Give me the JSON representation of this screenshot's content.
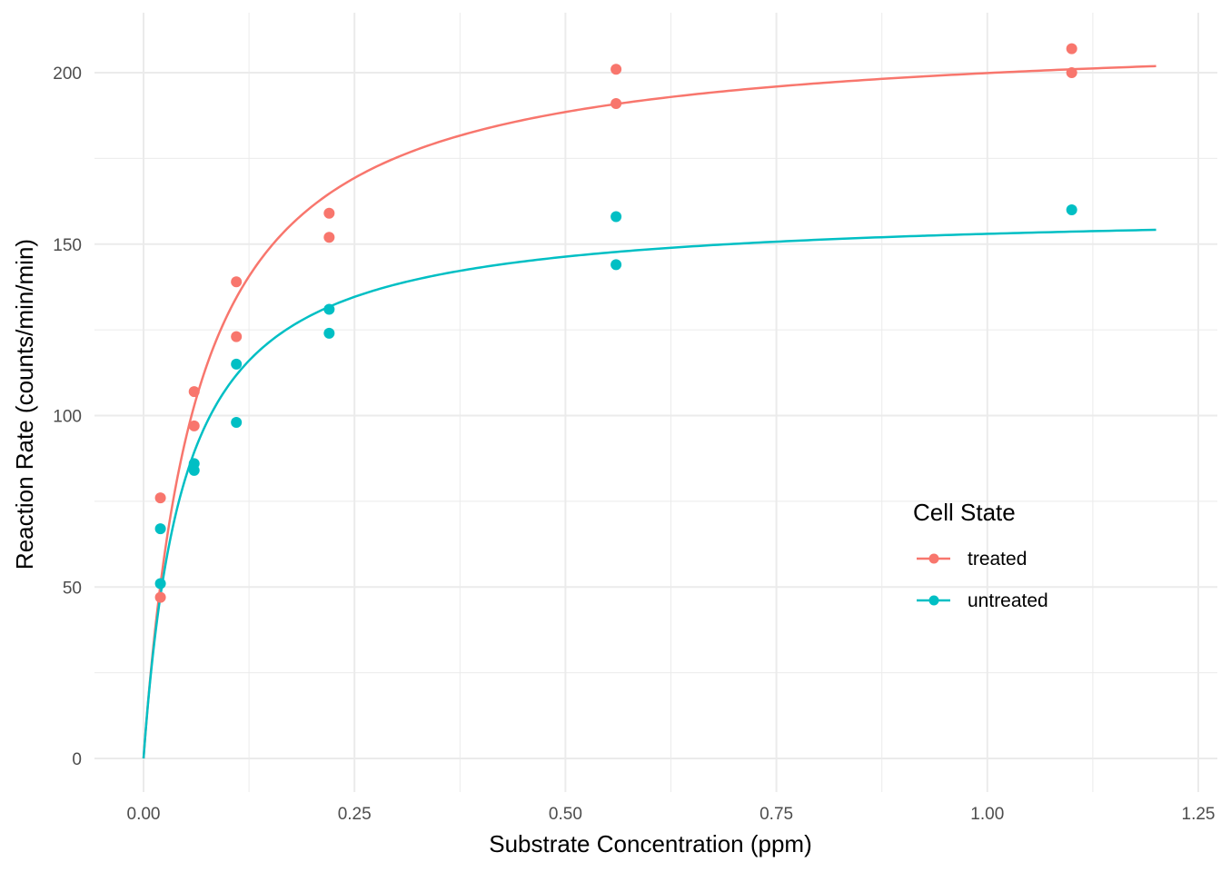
{
  "chart_data": {
    "type": "scatter",
    "title": "",
    "xlabel": "Substrate Concentration (ppm)",
    "ylabel": "Reaction Rate (counts/min/min)",
    "xlim": [
      -0.05,
      1.26
    ],
    "ylim": [
      -10,
      218
    ],
    "x_ticks": [
      0,
      0.25,
      0.5,
      0.75,
      1.0,
      1.25
    ],
    "x_tick_labels": [
      "0.00",
      "0.25",
      "0.50",
      "0.75",
      "1.00",
      "1.25"
    ],
    "y_ticks": [
      0,
      50,
      100,
      150,
      200
    ],
    "y_tick_labels": [
      "0",
      "50",
      "100",
      "150",
      "200"
    ],
    "grid": true,
    "legend": {
      "title": "Cell State",
      "placement": "right-inside",
      "entries": [
        "treated",
        "untreated"
      ]
    },
    "series": [
      {
        "name": "treated",
        "color": "#F8766D",
        "points": [
          {
            "x": 0.02,
            "y": 76
          },
          {
            "x": 0.02,
            "y": 47
          },
          {
            "x": 0.06,
            "y": 97
          },
          {
            "x": 0.06,
            "y": 107
          },
          {
            "x": 0.11,
            "y": 123
          },
          {
            "x": 0.11,
            "y": 139
          },
          {
            "x": 0.22,
            "y": 159
          },
          {
            "x": 0.22,
            "y": 152
          },
          {
            "x": 0.56,
            "y": 191
          },
          {
            "x": 0.56,
            "y": 201
          },
          {
            "x": 1.1,
            "y": 207
          },
          {
            "x": 1.1,
            "y": 200
          }
        ],
        "fit": {
          "model": "michaelis-menten",
          "Vm": 212.7,
          "K": 0.0641,
          "x_range": [
            0,
            1.2
          ]
        }
      },
      {
        "name": "untreated",
        "color": "#00BFC4",
        "points": [
          {
            "x": 0.02,
            "y": 67
          },
          {
            "x": 0.02,
            "y": 51
          },
          {
            "x": 0.06,
            "y": 84
          },
          {
            "x": 0.06,
            "y": 86
          },
          {
            "x": 0.11,
            "y": 98
          },
          {
            "x": 0.11,
            "y": 115
          },
          {
            "x": 0.22,
            "y": 131
          },
          {
            "x": 0.22,
            "y": 124
          },
          {
            "x": 0.56,
            "y": 144
          },
          {
            "x": 0.56,
            "y": 158
          },
          {
            "x": 1.1,
            "y": 160
          }
        ],
        "fit": {
          "model": "michaelis-menten",
          "Vm": 160.3,
          "K": 0.0477,
          "x_range": [
            0,
            1.2
          ]
        }
      }
    ]
  }
}
